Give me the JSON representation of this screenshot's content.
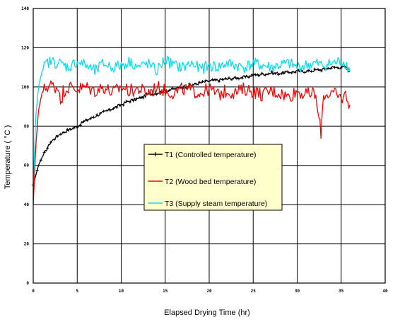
{
  "chart_data": {
    "type": "line",
    "title": "",
    "xlabel": "Elapsed Drying Time (hr)",
    "ylabel": "Temperature ( °C )",
    "xlim": [
      0,
      40
    ],
    "ylim": [
      0,
      140
    ],
    "x_ticks": [
      "0",
      "5",
      "10",
      "15",
      "20",
      "25",
      "30",
      "35",
      "40"
    ],
    "y_ticks": [
      "0",
      "20",
      "40",
      "60",
      "80",
      "100",
      "120",
      "140"
    ],
    "grid": true,
    "legend_position": "center-left",
    "series": [
      {
        "name": "T1 (Controlled temperature)",
        "color": "#000000",
        "marker": "plus",
        "x": [
          0,
          0.3,
          0.6,
          1,
          1.5,
          2,
          3,
          4,
          5,
          6,
          7,
          8,
          9,
          10,
          11,
          12,
          13,
          14,
          15,
          16,
          17,
          18,
          19,
          20,
          21,
          22,
          23,
          24,
          25,
          26,
          27,
          28,
          29,
          30,
          31,
          32,
          33,
          34,
          35,
          35.5,
          36
        ],
        "y": [
          50,
          55,
          60,
          64,
          68,
          72,
          76,
          78,
          80,
          83,
          85,
          87,
          89,
          91,
          93,
          94,
          96,
          97,
          98,
          99,
          100,
          101,
          102,
          103,
          103.5,
          104,
          104.5,
          105,
          106,
          106.5,
          107,
          107,
          107.5,
          108,
          108,
          108.5,
          109,
          110,
          110,
          110,
          108
        ]
      },
      {
        "name": "T2 (Wood bed temperature)",
        "color": "#ff0000",
        "marker": "none",
        "x": [
          0,
          0.3,
          0.6,
          1,
          1.5,
          2,
          3,
          3.2,
          3.4,
          4,
          5,
          6,
          7,
          8,
          9,
          10,
          11,
          12,
          13,
          14,
          15,
          16,
          17,
          18,
          19,
          20,
          21,
          22,
          23,
          24,
          25,
          26,
          27,
          28,
          29,
          30,
          31,
          32,
          32.7,
          33,
          34,
          35,
          35.5,
          36
        ],
        "y": [
          40,
          70,
          88,
          97,
          100,
          101,
          99,
          90,
          98,
          100,
          99,
          100,
          98,
          100,
          97,
          100,
          98,
          99,
          97,
          100,
          98,
          97,
          99,
          98,
          97,
          99,
          96,
          98,
          97,
          99,
          98,
          96,
          98,
          97,
          95,
          98,
          96,
          97,
          77,
          96,
          97,
          94,
          96,
          91
        ]
      },
      {
        "name": "T3 (Supply steam temperature)",
        "color": "#00e0f0",
        "marker": "none",
        "x": [
          0,
          0.3,
          0.6,
          1,
          1.5,
          2,
          3,
          4,
          5,
          6,
          7,
          8,
          9,
          10,
          11,
          12,
          13,
          14,
          15,
          16,
          17,
          18,
          19,
          20,
          21,
          22,
          23,
          24,
          25,
          26,
          27,
          28,
          29,
          30,
          31,
          32,
          33,
          34,
          35,
          35.5,
          36
        ],
        "y": [
          50,
          85,
          100,
          108,
          112,
          113,
          112,
          110,
          113,
          111,
          108,
          112,
          110,
          111,
          113,
          110,
          112,
          108,
          114,
          111,
          110,
          112,
          109,
          111,
          110,
          112,
          111,
          110,
          112,
          111,
          110,
          111,
          112,
          110,
          111,
          112,
          111,
          112,
          113,
          112,
          108
        ]
      }
    ]
  }
}
